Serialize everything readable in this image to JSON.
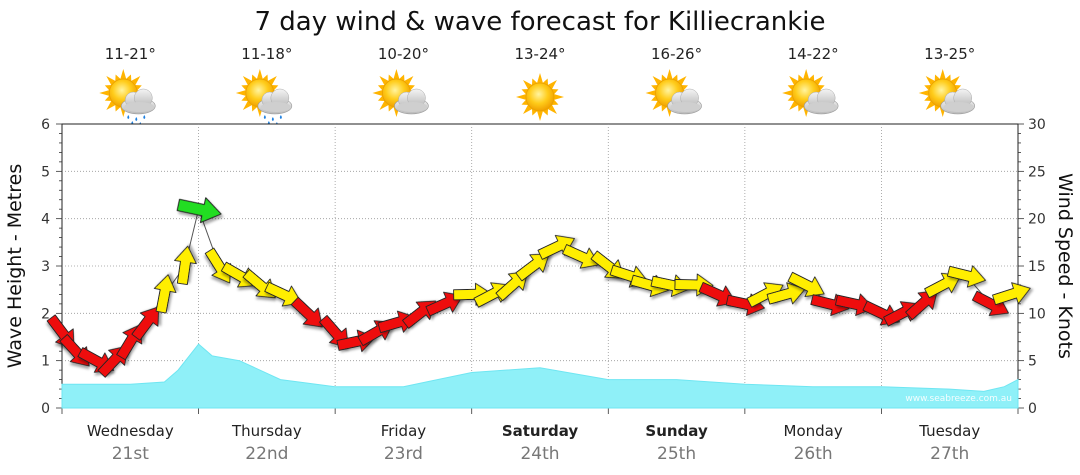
{
  "chart_data": {
    "type": "area",
    "title": "7 day wind & wave forecast for Killiecrankie",
    "left_axis_label": "Wave Height - Metres",
    "right_axis_label": "Wind Speed - Knots",
    "left_ylim": [
      0,
      6
    ],
    "right_ylim": [
      0,
      30
    ],
    "left_ticks": [
      "0",
      "1",
      "2",
      "3",
      "4",
      "5",
      "6"
    ],
    "right_ticks": [
      "0",
      "5",
      "10",
      "15",
      "20",
      "25",
      "30"
    ],
    "days": [
      {
        "name": "Wednesday",
        "date": "21st",
        "temp": "11-21°",
        "weather": "sun-cloud-rain",
        "bold": false
      },
      {
        "name": "Thursday",
        "date": "22nd",
        "temp": "11-18°",
        "weather": "sun-cloud-rain",
        "bold": false
      },
      {
        "name": "Friday",
        "date": "23rd",
        "temp": "10-20°",
        "weather": "sun-cloud",
        "bold": false
      },
      {
        "name": "Saturday",
        "date": "24th",
        "temp": "13-24°",
        "weather": "sun",
        "bold": true
      },
      {
        "name": "Sunday",
        "date": "25th",
        "temp": "16-26°",
        "weather": "sun-cloud",
        "bold": true
      },
      {
        "name": "Monday",
        "date": "26th",
        "temp": "14-22°",
        "weather": "sun-cloud",
        "bold": false
      },
      {
        "name": "Tuesday",
        "date": "27th",
        "temp": "13-25°",
        "weather": "sun-cloud",
        "bold": false
      }
    ],
    "wave_series": {
      "name": "Wave Height",
      "x_days": [
        0,
        0.25,
        0.5,
        0.75,
        0.85,
        1.0,
        1.1,
        1.3,
        1.6,
        2.0,
        2.5,
        3.0,
        3.5,
        4.0,
        4.5,
        5.0,
        5.5,
        6.0,
        6.5,
        6.75,
        6.9,
        7.0
      ],
      "values": [
        0.5,
        0.5,
        0.5,
        0.55,
        0.8,
        1.35,
        1.1,
        1.0,
        0.6,
        0.45,
        0.45,
        0.75,
        0.85,
        0.6,
        0.6,
        0.5,
        0.45,
        0.45,
        0.4,
        0.35,
        0.45,
        0.6
      ]
    },
    "wind_series": {
      "name": "Wind Speed",
      "x_days": [
        0.0,
        0.1,
        0.25,
        0.38,
        0.5,
        0.62,
        0.75,
        0.9,
        1.0,
        1.15,
        1.3,
        1.45,
        1.62,
        1.8,
        2.0,
        2.15,
        2.3,
        2.45,
        2.62,
        2.8,
        3.0,
        3.15,
        3.3,
        3.45,
        3.62,
        3.8,
        4.0,
        4.15,
        4.3,
        4.45,
        4.62,
        4.8,
        5.0,
        5.15,
        5.3,
        5.45,
        5.62,
        5.8,
        6.0,
        6.15,
        6.3,
        6.45,
        6.62,
        6.8,
        6.95
      ],
      "values": [
        8,
        6,
        5,
        5,
        7,
        9,
        12,
        15,
        21,
        15,
        14,
        13,
        12,
        10,
        8,
        7,
        8,
        9,
        10,
        11,
        12,
        12,
        13,
        15,
        17,
        16,
        15,
        14,
        13,
        13,
        13,
        12,
        11,
        12,
        12,
        13,
        11,
        11,
        10,
        10,
        11,
        13,
        14,
        11,
        12
      ],
      "colors": [
        "red",
        "red",
        "red",
        "red",
        "red",
        "red",
        "yellow",
        "yellow",
        "green",
        "yellow",
        "yellow",
        "yellow",
        "yellow",
        "red",
        "red",
        "red",
        "red",
        "red",
        "red",
        "red",
        "yellow",
        "yellow",
        "yellow",
        "yellow",
        "yellow",
        "yellow",
        "yellow",
        "yellow",
        "yellow",
        "yellow",
        "yellow",
        "red",
        "red",
        "yellow",
        "yellow",
        "yellow",
        "red",
        "red",
        "red",
        "red",
        "red",
        "yellow",
        "yellow",
        "red",
        "yellow"
      ]
    },
    "grid": true
  },
  "watermark": "www.seabreeze.com.au",
  "colors": {
    "wave_fill": "#8ff0f8",
    "wave_stroke": "#6fe6f2",
    "arrow_red": "#ee1111",
    "arrow_yellow": "#ffee00",
    "arrow_green": "#22dd22",
    "grid": "#999999"
  }
}
